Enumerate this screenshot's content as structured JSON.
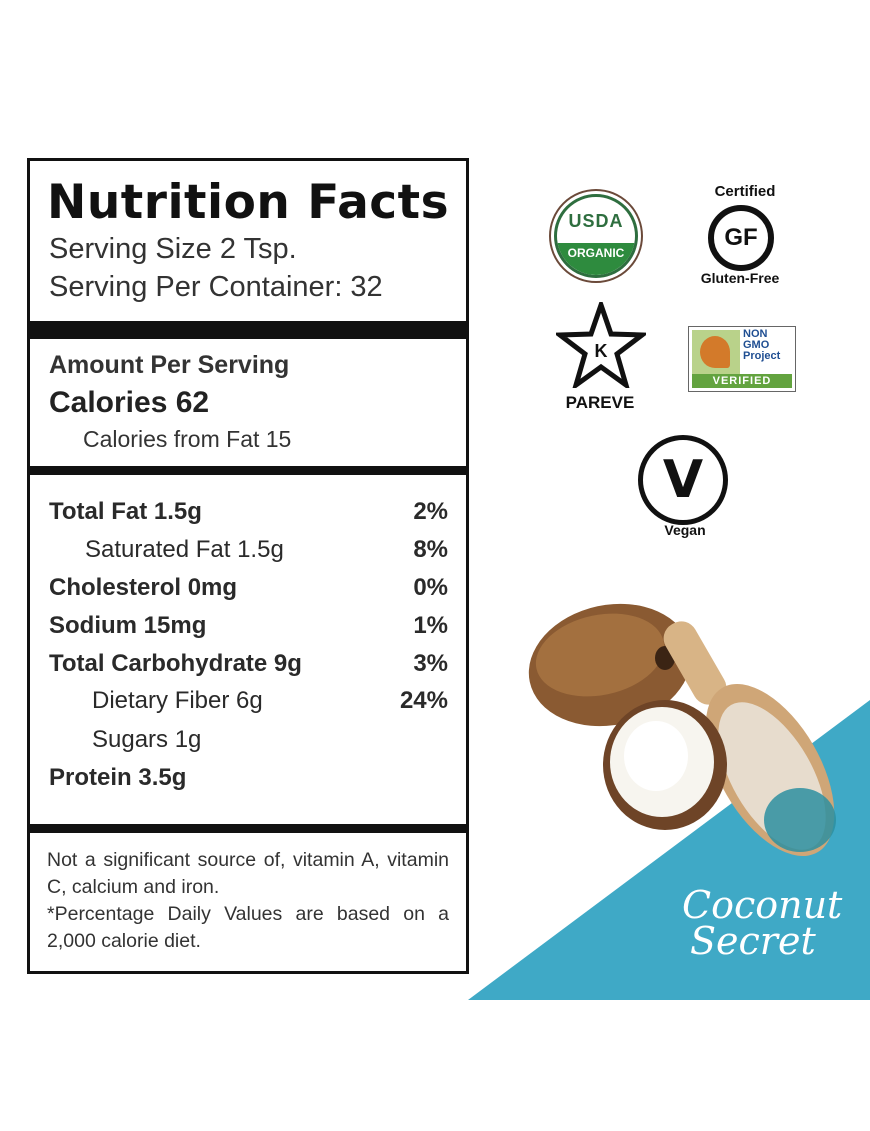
{
  "label": {
    "title": "Nutrition Facts",
    "serving_size": "Serving Size 2 Tsp.",
    "servings_per_container": "Serving Per Container: 32",
    "amount_per_serving": "Amount Per Serving",
    "calories": "Calories 62",
    "calories_from_fat": "Calories from Fat 15",
    "nutrients": [
      {
        "name": "Total Fat 1.5g",
        "pct": "2%"
      },
      {
        "name": "Saturated Fat 1.5g",
        "pct": "8%"
      },
      {
        "name": "Cholesterol 0mg",
        "pct": "0%"
      },
      {
        "name": "Sodium 15mg",
        "pct": "1%"
      },
      {
        "name": "Total Carbohydrate 9g",
        "pct": "3%"
      },
      {
        "name": "Dietary Fiber 6g",
        "pct": "24%"
      },
      {
        "name": "Sugars 1g",
        "pct": ""
      },
      {
        "name": "Protein 3.5g",
        "pct": ""
      }
    ],
    "footnote_1": "Not a significant source of, vitamin A, vitamin C, calcium and iron.",
    "footnote_2": "*Percentage Daily Values are based on a 2,000 calorie diet."
  },
  "badges": {
    "usda_top": "USDA",
    "usda_bottom": "ORGANIC",
    "gf_certified": "Certified",
    "gf_mark": "GF",
    "gf_label": "Gluten-Free",
    "kosher_mark": "K",
    "kosher_label": "PAREVE",
    "nongmo_text": "NON GMO Project",
    "nongmo_verified": "VERIFIED",
    "vegan_mark": "V",
    "vegan_label": "Vegan"
  },
  "brand": {
    "line1": "Coconut",
    "line2": "Secret"
  },
  "colors": {
    "accent_teal": "#3fa9c6",
    "usda_green": "#2e8b3e",
    "nongmo_green": "#63a33f"
  }
}
